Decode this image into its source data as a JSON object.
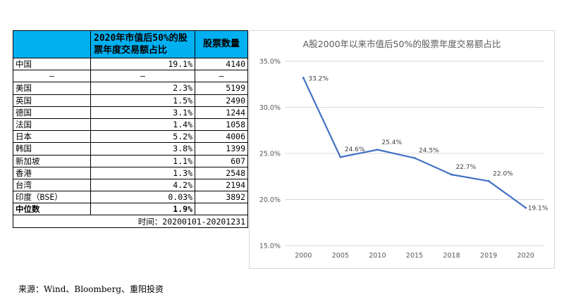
{
  "table": {
    "header": {
      "col1": "",
      "col2": "2020年市值后50%的股票年度交易额占比",
      "col3": "股票数量"
    },
    "rows": [
      {
        "market": "中国",
        "ratio": "19.1%",
        "count": "4140"
      },
      {
        "market": "–",
        "ratio": "–",
        "count": "–"
      },
      {
        "market": "美国",
        "ratio": "2.3%",
        "count": "5199"
      },
      {
        "market": "英国",
        "ratio": "1.5%",
        "count": "2490"
      },
      {
        "market": "德国",
        "ratio": "3.1%",
        "count": "1244"
      },
      {
        "market": "法国",
        "ratio": "1.4%",
        "count": "1058"
      },
      {
        "market": "日本",
        "ratio": "5.2%",
        "count": "4006"
      },
      {
        "market": "韩国",
        "ratio": "3.8%",
        "count": "1399"
      },
      {
        "market": "新加坡",
        "ratio": "1.1%",
        "count": "607"
      },
      {
        "market": "香港",
        "ratio": "1.3%",
        "count": "2548"
      },
      {
        "market": "台湾",
        "ratio": "4.2%",
        "count": "2194"
      },
      {
        "market": "印度（BSE）",
        "ratio": "0.03%",
        "count": "3892"
      }
    ],
    "median": {
      "label": "中位数",
      "ratio": "1.9%",
      "count": ""
    },
    "time_note": "时间：20200101-20201231",
    "header_color": "#00b0f0"
  },
  "chart_data": {
    "type": "line",
    "title": "A股2000年以来市值后50%的股票年度交易额占比",
    "categories": [
      "2000",
      "2005",
      "2010",
      "2015",
      "2018",
      "2019",
      "2020"
    ],
    "values": [
      33.2,
      24.6,
      25.4,
      24.5,
      22.7,
      22.0,
      19.1
    ],
    "data_labels": [
      "33.2%",
      "24.6%",
      "25.4%",
      "24.5%",
      "22.7%",
      "22.0%",
      "19.1%"
    ],
    "ylim": [
      15,
      35
    ],
    "yticks": [
      "15.0%",
      "20.0%",
      "25.0%",
      "30.0%",
      "35.0%"
    ],
    "ytick_values": [
      15,
      20,
      25,
      30,
      35
    ],
    "xlabel": "",
    "ylabel": "",
    "grid": true,
    "line_color": "#4472c4"
  },
  "source": "来源：Wind、Bloomberg、重阳投资"
}
